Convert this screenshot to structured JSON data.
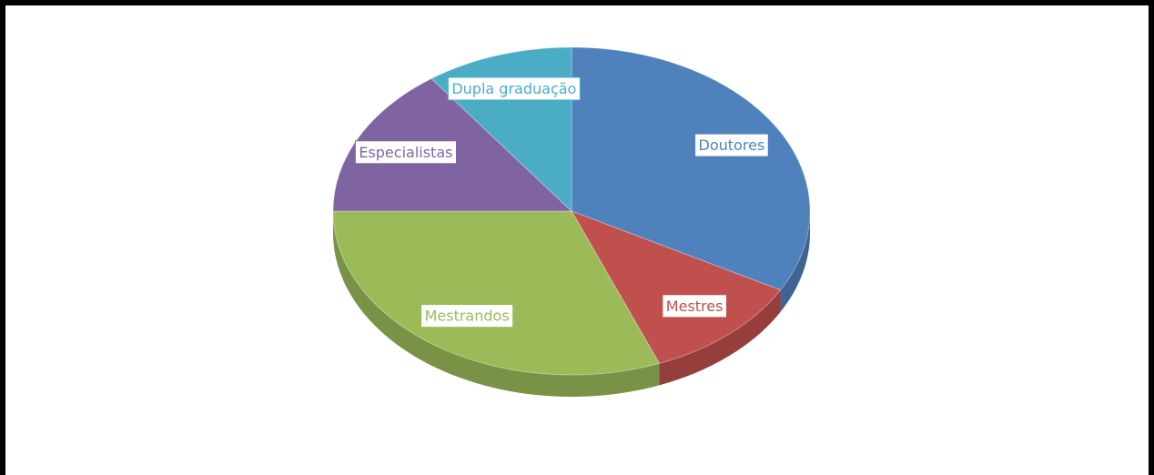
{
  "chart_data": {
    "type": "pie3d",
    "categories": [
      "Doutores",
      "Mestres",
      "Mestrandos",
      "Especialistas",
      "Dupla graduação"
    ],
    "values": [
      33,
      11,
      31,
      15,
      10
    ],
    "colors": [
      "#4f81bd",
      "#c0504d",
      "#9bbb59",
      "#8064a2",
      "#4bacc6"
    ]
  }
}
